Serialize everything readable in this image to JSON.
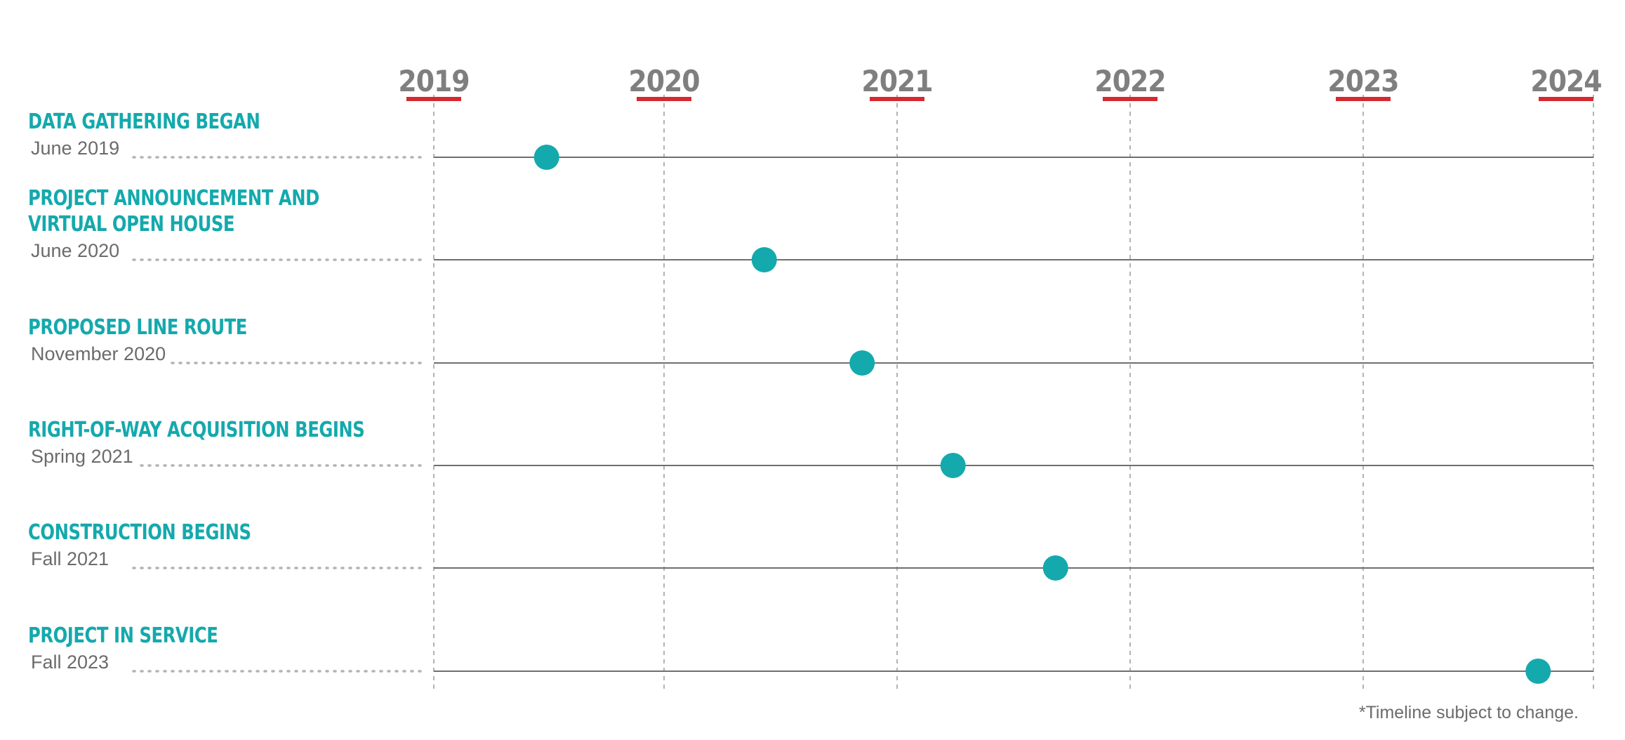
{
  "chart_data": {
    "type": "timeline",
    "years": [
      "2019",
      "2020",
      "2021",
      "2022",
      "2023",
      "2024"
    ],
    "milestones": [
      {
        "title": "DATA GATHERING BEGAN",
        "date_label": "June 2019",
        "x": 2019.49
      },
      {
        "title": "PROJECT ANNOUNCEMENT AND VIRTUAL OPEN HOUSE",
        "date_label": "June 2020",
        "x": 2020.43
      },
      {
        "title": "PROPOSED LINE ROUTE",
        "date_label": "November 2020",
        "x": 2020.85
      },
      {
        "title": "RIGHT-OF-WAY ACQUISITION BEGINS",
        "date_label": "Spring 2021",
        "x": 2021.24
      },
      {
        "title": "CONSTRUCTION BEGINS",
        "date_label": "Fall 2021",
        "x": 2021.68
      },
      {
        "title": "PROJECT IN SERVICE",
        "date_label": "Fall 2023",
        "x": 2023.76
      }
    ],
    "xlim": [
      2019,
      2024
    ],
    "grid": true
  },
  "footnote": "*Timeline subject to change.",
  "colors": {
    "accent": "#14a9ad",
    "year_underline": "#d7282f",
    "year_text": "#7f7f7f",
    "date_text": "#6b6b6b",
    "line": "#6f6f6f",
    "grid": "#b3b3b3"
  }
}
